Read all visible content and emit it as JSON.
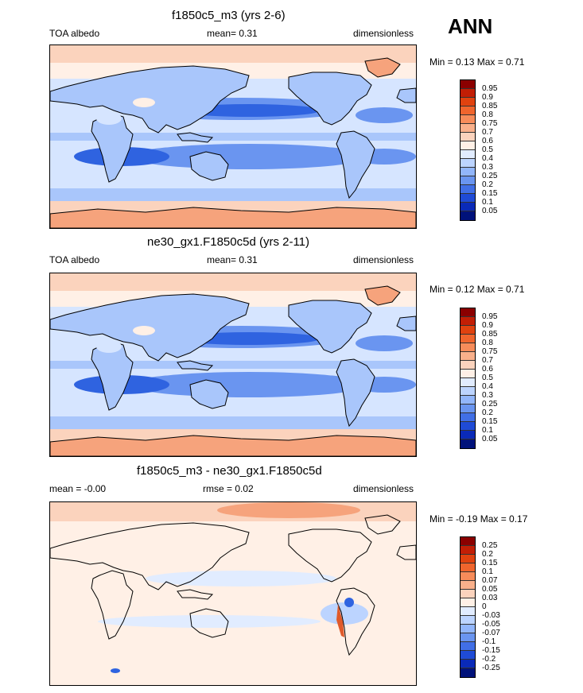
{
  "season": "ANN",
  "panels": [
    {
      "title": "f1850c5_m3 (yrs 2-6)",
      "left_label": "TOA albedo",
      "center_label": "mean=  0.31",
      "right_label": "dimensionless",
      "minmax": "Min =  0.13 Max =  0.71",
      "kind": "abs"
    },
    {
      "title": "ne30_gx1.F1850c5d (yrs 2-11)",
      "left_label": "TOA albedo",
      "center_label": "mean=  0.31",
      "right_label": "dimensionless",
      "minmax": "Min =  0.12 Max =  0.71",
      "kind": "abs"
    },
    {
      "title": "f1850c5_m3 - ne30_gx1.F1850c5d",
      "left_label": "mean =  -0.00",
      "center_label": "rmse =  0.02",
      "right_label": "dimensionless",
      "minmax": "Min =  -0.19 Max =  0.17",
      "kind": "diff"
    }
  ],
  "colorbar_abs": {
    "labels": [
      "0.95",
      "0.9",
      "0.85",
      "0.8",
      "0.75",
      "0.7",
      "0.6",
      "0.5",
      "0.4",
      "0.3",
      "0.25",
      "0.2",
      "0.15",
      "0.1",
      "0.05"
    ],
    "colors": [
      "#8b0000",
      "#c21e05",
      "#e0420f",
      "#f0652d",
      "#f78c5a",
      "#f9b08b",
      "#fbd3bd",
      "#fff0e6",
      "#e1ecff",
      "#bcd4ff",
      "#92b6fb",
      "#6a95f0",
      "#416fe6",
      "#1f4bd6",
      "#0a2ab8",
      "#00127a"
    ]
  },
  "colorbar_diff": {
    "labels": [
      "0.25",
      "0.2",
      "0.15",
      "0.1",
      "0.07",
      "0.05",
      "0.03",
      "0",
      "-0.03",
      "-0.05",
      "-0.07",
      "-0.1",
      "-0.15",
      "-0.2",
      "-0.25"
    ],
    "colors": [
      "#8b0000",
      "#c21e05",
      "#e0420f",
      "#f0652d",
      "#f78c5a",
      "#f9b08b",
      "#fbd3bd",
      "#fff0e6",
      "#e1ecff",
      "#bcd4ff",
      "#92b6fb",
      "#6a95f0",
      "#416fe6",
      "#1f4bd6",
      "#0a2ab8",
      "#00127a"
    ]
  },
  "map_colors": {
    "deep": "#2f63e0",
    "mid": "#6a95f0",
    "light": "#a9c6fb",
    "pale": "#d6e5ff",
    "white": "#fff0e6",
    "warm": "#fbd3bd",
    "orange": "#f6a37c",
    "red": "#e05a2b",
    "coast": "#000000"
  }
}
